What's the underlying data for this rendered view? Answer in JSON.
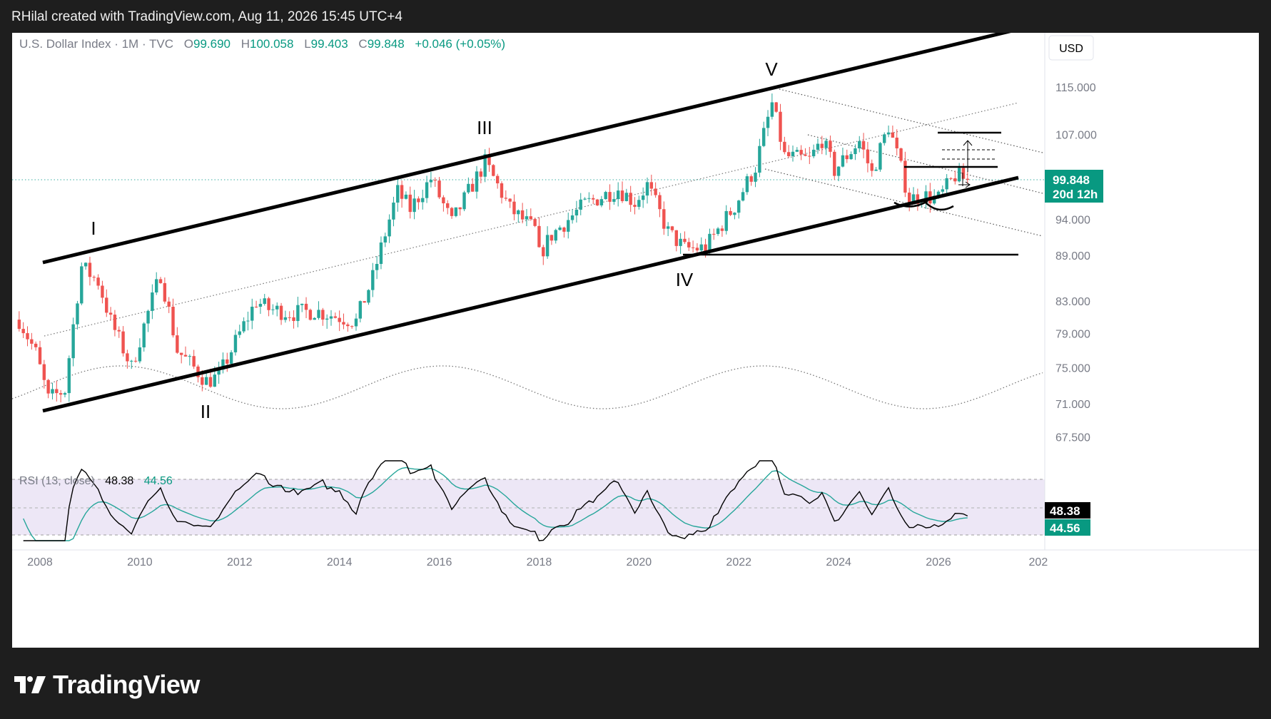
{
  "header": {
    "caption": "RHilal created with TradingView.com, Aug 11, 2026 15:45 UTC+4"
  },
  "legend": {
    "symbol": "U.S. Dollar Index · 1M · TVC",
    "open_label": "O",
    "open": "99.690",
    "high_label": "H",
    "high": "100.058",
    "low_label": "L",
    "low": "99.403",
    "close_label": "C",
    "close": "99.848",
    "change": "+0.046 (+0.05%)"
  },
  "currency": "USD",
  "price_badge": {
    "value": "99.848",
    "countdown": "20d 12h"
  },
  "rsi": {
    "label": "RSI (13, close)",
    "value": "48.38",
    "ma_value": "44.56"
  },
  "wave_labels": [
    "I",
    "II",
    "III",
    "IV",
    "V"
  ],
  "footer": {
    "brand": "TradingView"
  },
  "colors": {
    "up": "#26a69a",
    "down": "#ef5350",
    "rsi_band": "#ede7f6",
    "rsi_ma": "#26a69a",
    "badge": "#089981",
    "topbar_bg": "#1e1e1e",
    "axis_text": "#787b86"
  },
  "chart_data": [
    {
      "type": "candlestick",
      "title": "U.S. Dollar Index · 1M · TVC",
      "x": [
        "2008",
        "2010",
        "2012",
        "2014",
        "2016",
        "2018",
        "2020",
        "2022",
        "2024",
        "2026",
        "202"
      ],
      "y_ticks": [
        "115.000",
        "107.000",
        "99.848",
        "94.000",
        "89.000",
        "83.000",
        "79.000",
        "75.000",
        "71.000",
        "67.500"
      ],
      "y_scale": "log",
      "ylim": [
        64.5,
        128
      ],
      "last_close": 99.848,
      "close_path": [
        [
          "2007-08",
          80.7
        ],
        [
          "2007-12",
          76.7
        ],
        [
          "2008-03",
          71.5
        ],
        [
          "2008-07",
          72.5
        ],
        [
          "2008-11",
          87.5
        ],
        [
          "2009-03",
          85.5
        ],
        [
          "2009-06",
          80.5
        ],
        [
          "2009-11",
          75.0
        ],
        [
          "2010-06",
          86.5
        ],
        [
          "2010-10",
          77.0
        ],
        [
          "2011-05",
          73.5
        ],
        [
          "2011-08",
          74.0
        ],
        [
          "2012-05",
          83.0
        ],
        [
          "2012-08",
          82.0
        ],
        [
          "2013-02",
          81.5
        ],
        [
          "2013-07",
          81.8
        ],
        [
          "2014-05",
          80.5
        ],
        [
          "2014-09",
          86.0
        ],
        [
          "2015-03",
          98.0
        ],
        [
          "2015-06",
          95.5
        ],
        [
          "2015-11",
          100.0
        ],
        [
          "2016-04",
          93.5
        ],
        [
          "2016-12",
          102.5
        ],
        [
          "2017-06",
          95.5
        ],
        [
          "2017-12",
          92.5
        ],
        [
          "2018-01",
          89.0
        ],
        [
          "2018-04",
          91.8
        ],
        [
          "2018-12",
          96.2
        ],
        [
          "2019-08",
          98.5
        ],
        [
          "2019-12",
          96.5
        ],
        [
          "2020-03",
          99.0
        ],
        [
          "2020-08",
          92.2
        ],
        [
          "2020-12",
          89.9
        ],
        [
          "2021-05",
          90.0
        ],
        [
          "2021-12",
          95.9
        ],
        [
          "2022-05",
          101.8
        ],
        [
          "2022-09",
          112.1
        ],
        [
          "2022-12",
          103.5
        ],
        [
          "2023-06",
          102.9
        ],
        [
          "2023-09",
          106.2
        ],
        [
          "2023-12",
          101.3
        ],
        [
          "2024-06",
          105.9
        ],
        [
          "2024-09",
          100.8
        ],
        [
          "2025-01",
          108.4
        ],
        [
          "2025-06",
          96.9
        ],
        [
          "2025-09",
          97.5
        ],
        [
          "2026-01",
          97.0
        ],
        [
          "2026-05",
          100.5
        ],
        [
          "2026-08",
          99.848
        ]
      ]
    },
    {
      "type": "line",
      "title": "RSI (13, close)",
      "x": [
        "2008",
        "2010",
        "2012",
        "2014",
        "2016",
        "2018",
        "2020",
        "2022",
        "2024",
        "2026",
        "202"
      ],
      "series": [
        {
          "name": "RSI (13, close)",
          "last": 48.38
        },
        {
          "name": "",
          "last": 44.56
        }
      ]
    }
  ]
}
